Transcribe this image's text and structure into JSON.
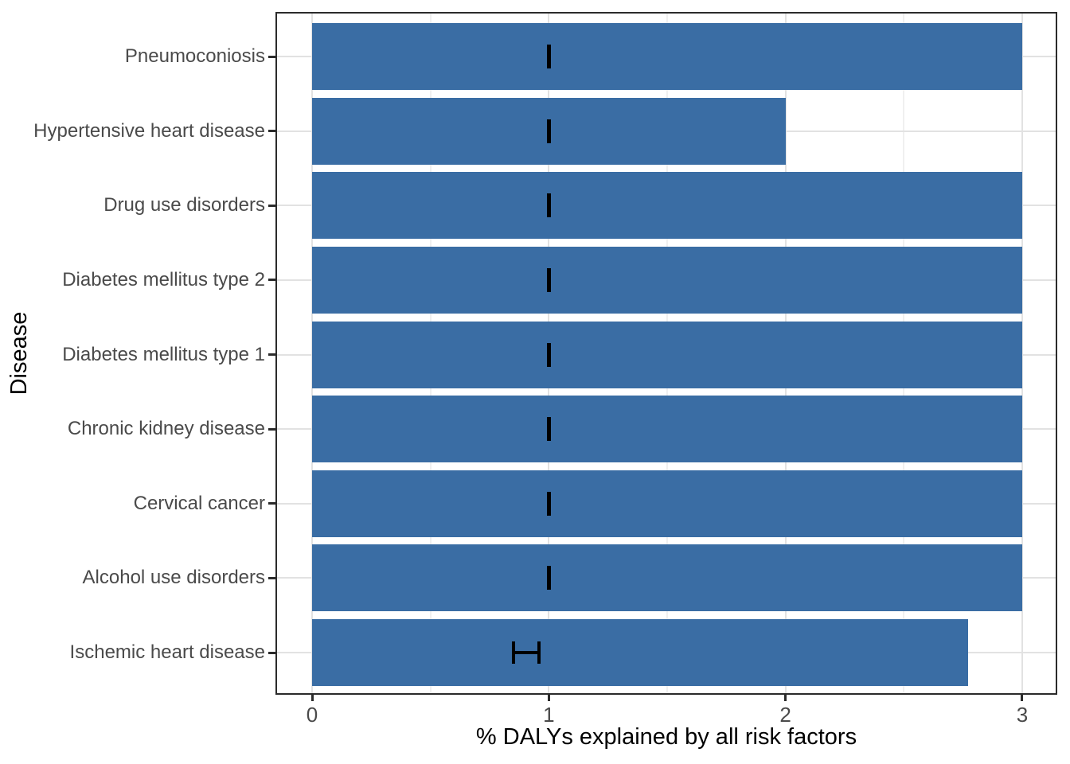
{
  "chart_data": {
    "type": "bar",
    "orientation": "horizontal",
    "title": "",
    "xlabel": "% DALYs explained by all risk factors",
    "ylabel": "Disease",
    "xlim": [
      0,
      3
    ],
    "x_major_ticks": [
      "0",
      "1",
      "2",
      "3"
    ],
    "x_major_tick_values": [
      0,
      1,
      2,
      3
    ],
    "x_minor_gridline_values": [
      0.5,
      1.5,
      2.5
    ],
    "grid": "on",
    "legend_position": "none",
    "categories_top_to_bottom": [
      "Pneumoconiosis",
      "Hypertensive heart disease",
      "Drug use disorders",
      "Diabetes mellitus type 2",
      "Diabetes mellitus type 1",
      "Chronic kidney disease",
      "Cervical cancer",
      "Alcohol use disorders",
      "Ischemic heart disease"
    ],
    "values": [
      3.0,
      2.0,
      3.0,
      3.0,
      3.0,
      3.0,
      3.0,
      3.0,
      2.77
    ],
    "error_bars": [
      {
        "xmin": 1.0,
        "xmax": 1.0
      },
      {
        "xmin": 1.0,
        "xmax": 1.0
      },
      {
        "xmin": 1.0,
        "xmax": 1.0
      },
      {
        "xmin": 1.0,
        "xmax": 1.0
      },
      {
        "xmin": 1.0,
        "xmax": 1.0
      },
      {
        "xmin": 1.0,
        "xmax": 1.0
      },
      {
        "xmin": 1.0,
        "xmax": 1.0
      },
      {
        "xmin": 1.0,
        "xmax": 1.0
      },
      {
        "xmin": 0.85,
        "xmax": 0.96
      }
    ],
    "colors": {
      "bar": "#3a6da4",
      "errorbar": "#000000",
      "grid_major": "#e2e2e2",
      "grid_minor": "#f0f0f0",
      "panel_border": "#2b2b2b",
      "axis_tick": "#2b2b2b",
      "axis_text": "#4a4a4a",
      "axis_title": "#000000",
      "panel_background": "#ffffff"
    }
  }
}
